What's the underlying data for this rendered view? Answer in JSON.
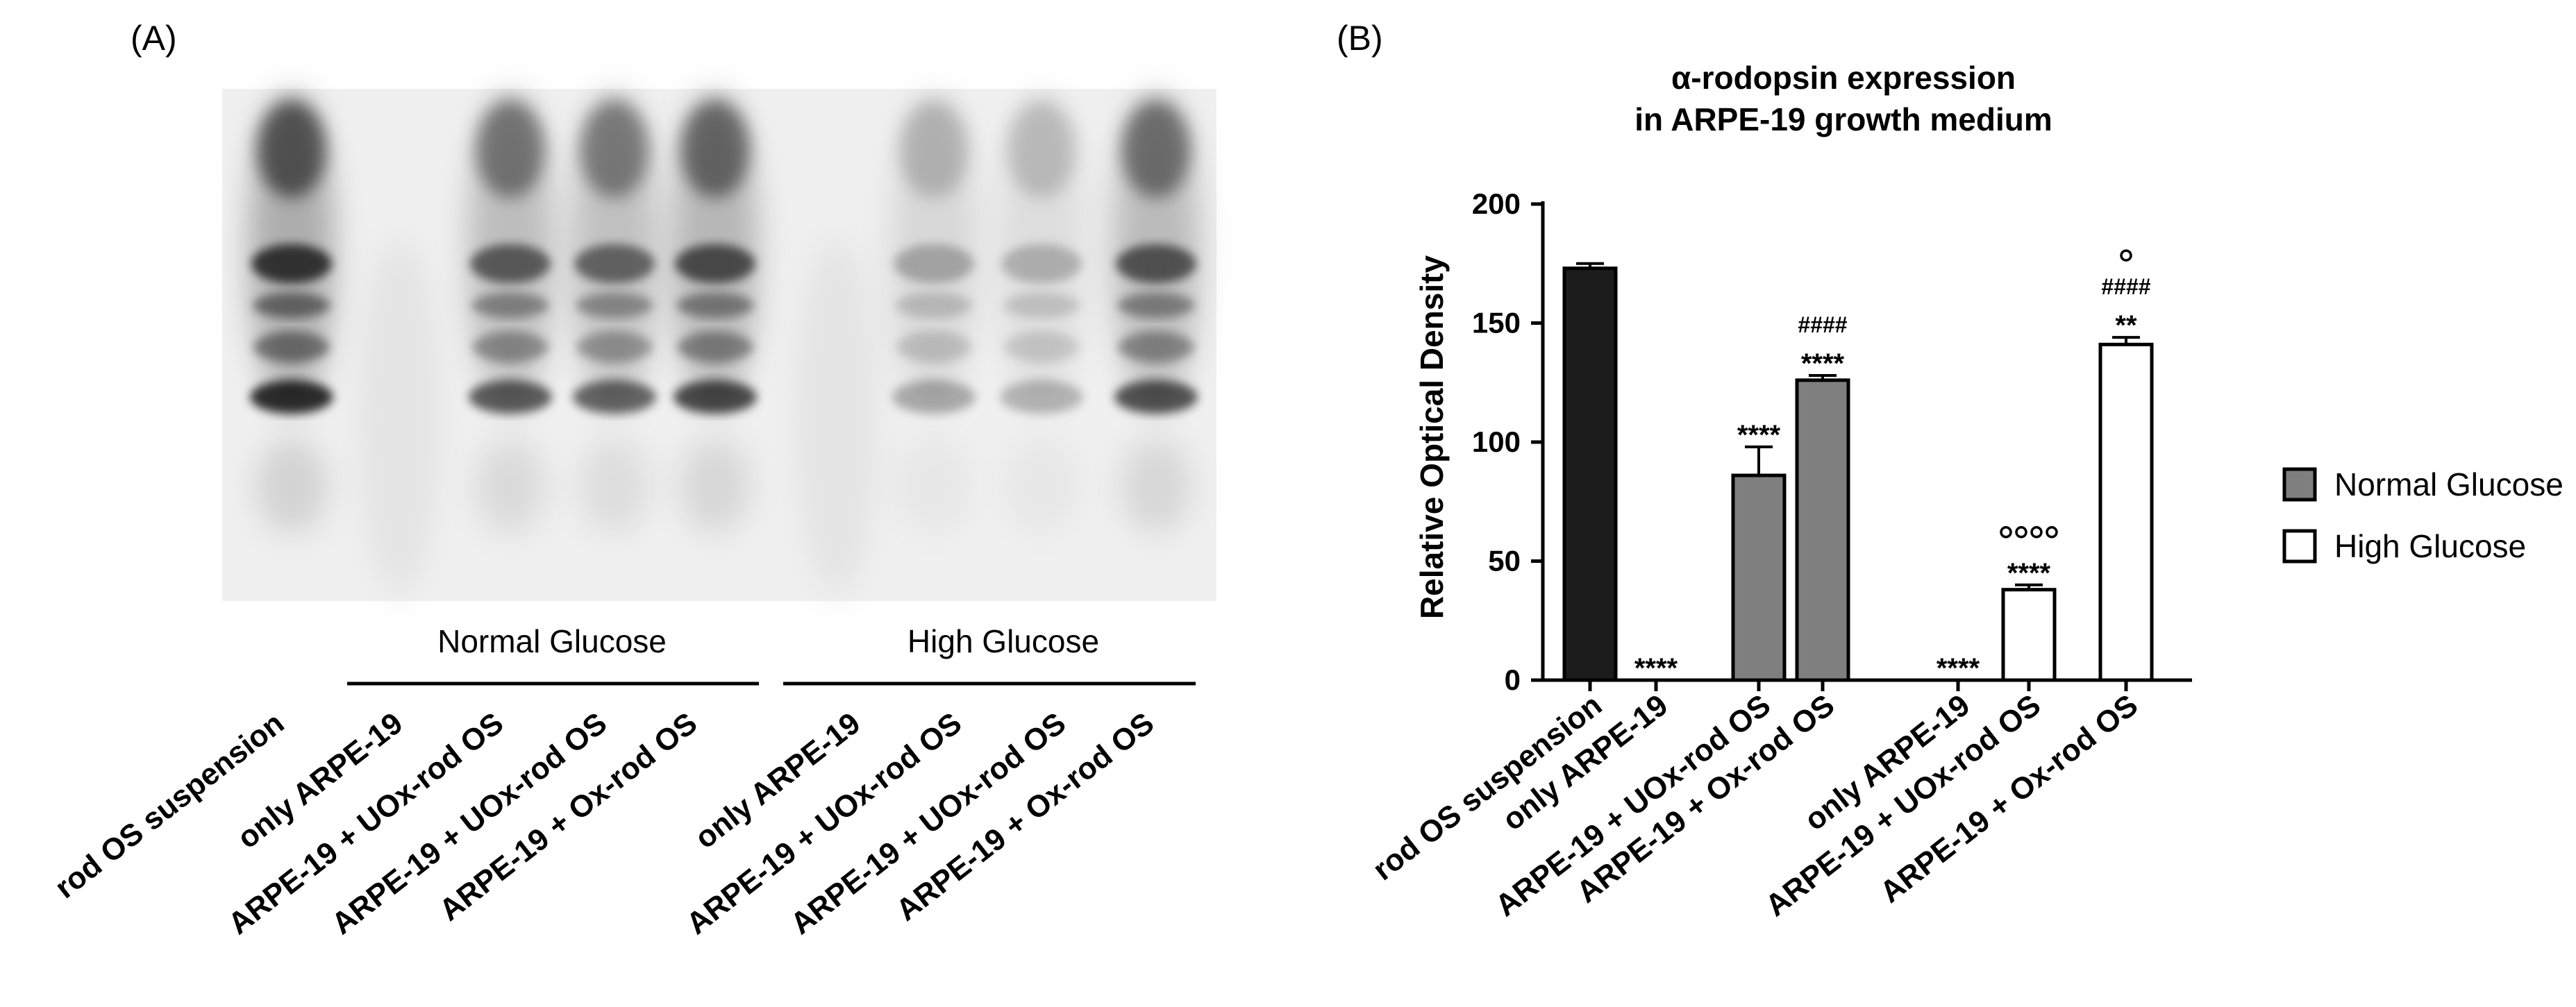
{
  "panel_a": {
    "label": "(A)",
    "group_labels": [
      "Normal Glucose",
      "High Glucose"
    ],
    "lane_labels": [
      "rod OS suspension",
      "only ARPE-19",
      "ARPE-19 + UOx-rod OS",
      "ARPE-19 + UOx-rod OS",
      "ARPE-19 + Ox-rod OS",
      "only ARPE-19",
      "ARPE-19 + UOx-rod OS",
      "ARPE-19 + UOx-rod OS",
      "ARPE-19 + Ox-rod OS"
    ]
  },
  "panel_b": {
    "label": "(B)"
  },
  "chart_data": {
    "type": "bar",
    "title": [
      "α-rodopsin expression",
      "in ARPE-19 growth medium"
    ],
    "ylabel": "Relative Optical Density",
    "ylim": [
      0,
      200
    ],
    "yticks": [
      "0",
      "50",
      "100",
      "150",
      "200"
    ],
    "categories": [
      "rod OS suspension",
      "only ARPE-19",
      "ARPE-19 + UOx-rod OS",
      "ARPE-19 + Ox-rod OS",
      "only ARPE-19",
      "ARPE-19 + UOx-rod OS",
      "ARPE-19 + Ox-rod OS"
    ],
    "values": [
      173,
      0,
      86,
      126,
      0,
      38,
      141
    ],
    "errors": [
      2,
      0,
      12,
      2,
      0,
      2,
      3
    ],
    "fills": [
      "#1c1c1c",
      "#7f7f7f",
      "#7f7f7f",
      "#7f7f7f",
      "#ffffff",
      "#ffffff",
      "#ffffff"
    ],
    "annotations": [
      [],
      [
        "****"
      ],
      [
        "****"
      ],
      [
        "****",
        "####"
      ],
      [
        "****"
      ],
      [
        "****",
        "oooo"
      ],
      [
        "**",
        "####",
        "o"
      ]
    ],
    "legend": {
      "position": "right",
      "entries": [
        {
          "label": "Normal Glucose",
          "color": "#7f7f7f"
        },
        {
          "label": "High Glucose",
          "color": "#ffffff"
        }
      ]
    }
  }
}
